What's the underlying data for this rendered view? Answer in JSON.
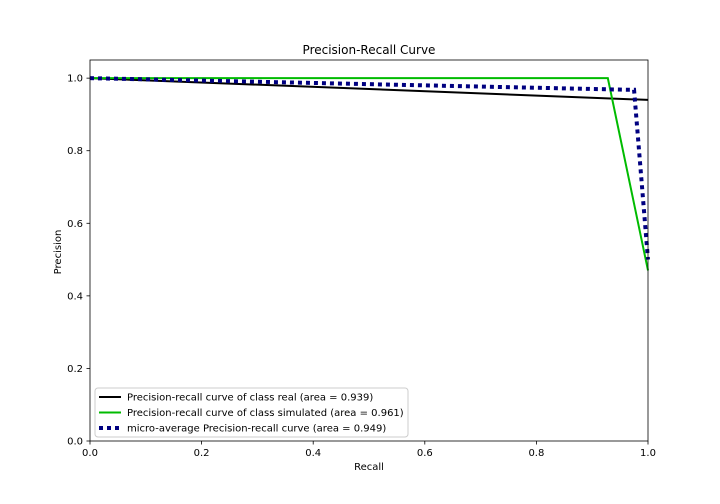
{
  "chart_data": {
    "type": "line",
    "title": "Precision-Recall Curve",
    "xlabel": "Recall",
    "ylabel": "Precision",
    "xlim": [
      0.0,
      1.0
    ],
    "ylim": [
      0.0,
      1.05
    ],
    "xticks": [
      "0.0",
      "0.2",
      "0.4",
      "0.6",
      "0.8",
      "1.0"
    ],
    "yticks": [
      "0.0",
      "0.2",
      "0.4",
      "0.6",
      "0.8",
      "1.0"
    ],
    "grid": false,
    "legend_position": "lower-left",
    "series": [
      {
        "name": "Precision-recall curve of class real (area = 0.939)",
        "color": "#000000",
        "style": "solid",
        "x": [
          0.0,
          1.0
        ],
        "y": [
          1.0,
          0.94
        ]
      },
      {
        "name": "Precision-recall curve of class simulated (area = 0.961)",
        "color": "#00bb00",
        "style": "solid",
        "x": [
          0.0,
          0.928,
          1.0
        ],
        "y": [
          1.0,
          1.0,
          0.47
        ]
      },
      {
        "name": "micro-average Precision-recall curve (area = 0.949)",
        "color": "#000080",
        "style": "dotted",
        "x": [
          0.0,
          0.965,
          0.975,
          1.0
        ],
        "y": [
          1.0,
          0.968,
          0.968,
          0.5
        ]
      }
    ]
  }
}
